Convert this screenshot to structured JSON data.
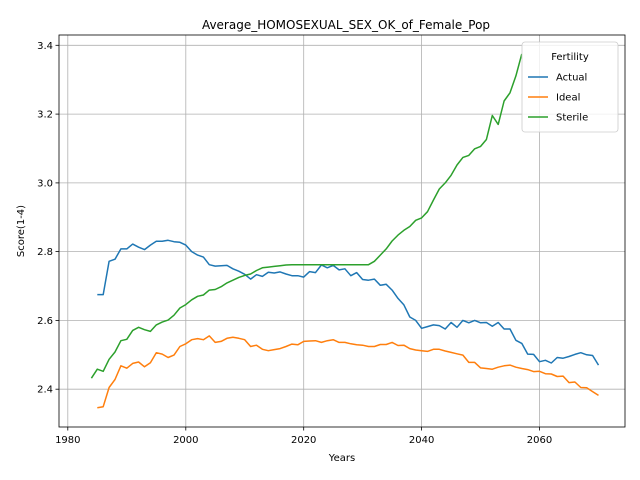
{
  "chart_data": {
    "type": "line",
    "title": "Average_HOMOSEXUAL_SEX_OK_of_Female_Pop",
    "xlabel": "Years",
    "ylabel": "Score(1-4)",
    "xlim": [
      1978.5,
      2074.5
    ],
    "ylim": [
      2.29,
      3.43
    ],
    "xticks": [
      1980,
      2000,
      2020,
      2040,
      2060
    ],
    "yticks": [
      2.4,
      2.6,
      2.8,
      3.0,
      3.2,
      3.4
    ],
    "xtick_labels": [
      "1980",
      "2000",
      "2020",
      "2040",
      "2060"
    ],
    "ytick_labels": [
      "2.4",
      "2.6",
      "2.8",
      "3.0",
      "3.2",
      "3.4"
    ],
    "grid": true,
    "legend": {
      "title": "Fertility",
      "position": "top-right"
    },
    "series": [
      {
        "name": "Actual",
        "color": "#1f77b4",
        "points": [
          [
            1985,
            2.675
          ],
          [
            1986,
            2.675
          ],
          [
            1987,
            2.772
          ],
          [
            1988,
            2.778
          ],
          [
            1989,
            2.808
          ],
          [
            1990,
            2.808
          ],
          [
            1991,
            2.822
          ],
          [
            1992,
            2.813
          ],
          [
            1993,
            2.806
          ],
          [
            1994,
            2.819
          ],
          [
            1995,
            2.83
          ],
          [
            1996,
            2.83
          ],
          [
            1997,
            2.833
          ],
          [
            1998,
            2.829
          ],
          [
            1999,
            2.827
          ],
          [
            2000,
            2.819
          ],
          [
            2001,
            2.8
          ],
          [
            2002,
            2.79
          ],
          [
            2003,
            2.784
          ],
          [
            2004,
            2.762
          ],
          [
            2005,
            2.758
          ],
          [
            2006,
            2.759
          ],
          [
            2007,
            2.76
          ],
          [
            2008,
            2.75
          ],
          [
            2009,
            2.743
          ],
          [
            2010,
            2.734
          ],
          [
            2011,
            2.72
          ],
          [
            2012,
            2.733
          ],
          [
            2013,
            2.728
          ],
          [
            2014,
            2.74
          ],
          [
            2015,
            2.738
          ],
          [
            2016,
            2.741
          ],
          [
            2017,
            2.735
          ],
          [
            2018,
            2.73
          ],
          [
            2019,
            2.73
          ],
          [
            2020,
            2.726
          ],
          [
            2021,
            2.742
          ],
          [
            2022,
            2.739
          ],
          [
            2023,
            2.761
          ],
          [
            2024,
            2.753
          ],
          [
            2025,
            2.76
          ],
          [
            2026,
            2.747
          ],
          [
            2027,
            2.75
          ],
          [
            2028,
            2.73
          ],
          [
            2029,
            2.739
          ],
          [
            2030,
            2.719
          ],
          [
            2031,
            2.717
          ],
          [
            2032,
            2.72
          ],
          [
            2033,
            2.702
          ],
          [
            2034,
            2.705
          ],
          [
            2035,
            2.688
          ],
          [
            2036,
            2.664
          ],
          [
            2037,
            2.645
          ],
          [
            2038,
            2.61
          ],
          [
            2039,
            2.6
          ],
          [
            2040,
            2.577
          ],
          [
            2041,
            2.582
          ],
          [
            2042,
            2.587
          ],
          [
            2043,
            2.585
          ],
          [
            2044,
            2.575
          ],
          [
            2045,
            2.594
          ],
          [
            2046,
            2.58
          ],
          [
            2047,
            2.6
          ],
          [
            2048,
            2.593
          ],
          [
            2049,
            2.6
          ],
          [
            2050,
            2.593
          ],
          [
            2051,
            2.594
          ],
          [
            2052,
            2.583
          ],
          [
            2053,
            2.594
          ],
          [
            2054,
            2.575
          ],
          [
            2055,
            2.575
          ],
          [
            2056,
            2.542
          ],
          [
            2057,
            2.533
          ],
          [
            2058,
            2.502
          ],
          [
            2059,
            2.501
          ],
          [
            2060,
            2.48
          ],
          [
            2061,
            2.484
          ],
          [
            2062,
            2.476
          ],
          [
            2063,
            2.492
          ],
          [
            2064,
            2.49
          ],
          [
            2065,
            2.495
          ],
          [
            2066,
            2.501
          ],
          [
            2067,
            2.506
          ],
          [
            2068,
            2.5
          ],
          [
            2069,
            2.498
          ],
          [
            2070,
            2.47
          ]
        ]
      },
      {
        "name": "Ideal",
        "color": "#ff7f0e",
        "points": [
          [
            1985,
            2.346
          ],
          [
            1986,
            2.349
          ],
          [
            1987,
            2.405
          ],
          [
            1988,
            2.428
          ],
          [
            1989,
            2.468
          ],
          [
            1990,
            2.461
          ],
          [
            1991,
            2.475
          ],
          [
            1992,
            2.479
          ],
          [
            1993,
            2.465
          ],
          [
            1994,
            2.477
          ],
          [
            1995,
            2.506
          ],
          [
            1996,
            2.502
          ],
          [
            1997,
            2.492
          ],
          [
            1998,
            2.499
          ],
          [
            1999,
            2.524
          ],
          [
            2000,
            2.532
          ],
          [
            2001,
            2.544
          ],
          [
            2002,
            2.547
          ],
          [
            2003,
            2.544
          ],
          [
            2004,
            2.555
          ],
          [
            2005,
            2.536
          ],
          [
            2006,
            2.539
          ],
          [
            2007,
            2.548
          ],
          [
            2008,
            2.551
          ],
          [
            2009,
            2.548
          ],
          [
            2010,
            2.544
          ],
          [
            2011,
            2.524
          ],
          [
            2012,
            2.528
          ],
          [
            2013,
            2.516
          ],
          [
            2014,
            2.512
          ],
          [
            2015,
            2.515
          ],
          [
            2016,
            2.518
          ],
          [
            2017,
            2.524
          ],
          [
            2018,
            2.531
          ],
          [
            2019,
            2.529
          ],
          [
            2020,
            2.539
          ],
          [
            2021,
            2.54
          ],
          [
            2022,
            2.541
          ],
          [
            2023,
            2.536
          ],
          [
            2024,
            2.541
          ],
          [
            2025,
            2.544
          ],
          [
            2026,
            2.536
          ],
          [
            2027,
            2.536
          ],
          [
            2028,
            2.532
          ],
          [
            2029,
            2.529
          ],
          [
            2030,
            2.528
          ],
          [
            2031,
            2.524
          ],
          [
            2032,
            2.524
          ],
          [
            2033,
            2.53
          ],
          [
            2034,
            2.53
          ],
          [
            2035,
            2.536
          ],
          [
            2036,
            2.527
          ],
          [
            2037,
            2.528
          ],
          [
            2038,
            2.518
          ],
          [
            2039,
            2.514
          ],
          [
            2040,
            2.512
          ],
          [
            2041,
            2.51
          ],
          [
            2042,
            2.516
          ],
          [
            2043,
            2.516
          ],
          [
            2044,
            2.511
          ],
          [
            2045,
            2.507
          ],
          [
            2046,
            2.503
          ],
          [
            2047,
            2.499
          ],
          [
            2048,
            2.478
          ],
          [
            2049,
            2.478
          ],
          [
            2050,
            2.462
          ],
          [
            2051,
            2.46
          ],
          [
            2052,
            2.458
          ],
          [
            2053,
            2.464
          ],
          [
            2054,
            2.468
          ],
          [
            2055,
            2.47
          ],
          [
            2056,
            2.464
          ],
          [
            2057,
            2.46
          ],
          [
            2058,
            2.457
          ],
          [
            2059,
            2.451
          ],
          [
            2060,
            2.452
          ],
          [
            2061,
            2.445
          ],
          [
            2062,
            2.444
          ],
          [
            2063,
            2.437
          ],
          [
            2064,
            2.438
          ],
          [
            2065,
            2.419
          ],
          [
            2066,
            2.421
          ],
          [
            2067,
            2.405
          ],
          [
            2068,
            2.404
          ],
          [
            2069,
            2.393
          ],
          [
            2070,
            2.382
          ]
        ]
      },
      {
        "name": "Sterile",
        "color": "#2ca02c",
        "points": [
          [
            1984,
            2.432
          ],
          [
            1985,
            2.458
          ],
          [
            1986,
            2.452
          ],
          [
            1987,
            2.487
          ],
          [
            1988,
            2.508
          ],
          [
            1989,
            2.541
          ],
          [
            1990,
            2.545
          ],
          [
            1991,
            2.571
          ],
          [
            1992,
            2.58
          ],
          [
            1993,
            2.573
          ],
          [
            1994,
            2.568
          ],
          [
            1995,
            2.587
          ],
          [
            1996,
            2.595
          ],
          [
            1997,
            2.601
          ],
          [
            1998,
            2.615
          ],
          [
            1999,
            2.636
          ],
          [
            2000,
            2.646
          ],
          [
            2001,
            2.66
          ],
          [
            2002,
            2.67
          ],
          [
            2003,
            2.674
          ],
          [
            2004,
            2.688
          ],
          [
            2005,
            2.69
          ],
          [
            2006,
            2.698
          ],
          [
            2007,
            2.709
          ],
          [
            2008,
            2.717
          ],
          [
            2009,
            2.725
          ],
          [
            2010,
            2.731
          ],
          [
            2011,
            2.735
          ],
          [
            2012,
            2.745
          ],
          [
            2013,
            2.753
          ],
          [
            2014,
            2.755
          ],
          [
            2015,
            2.757
          ],
          [
            2016,
            2.759
          ],
          [
            2017,
            2.761
          ],
          [
            2018,
            2.762
          ],
          [
            2019,
            2.762
          ],
          [
            2020,
            2.762
          ],
          [
            2021,
            2.762
          ],
          [
            2022,
            2.762
          ],
          [
            2023,
            2.762
          ],
          [
            2024,
            2.762
          ],
          [
            2025,
            2.762
          ],
          [
            2026,
            2.762
          ],
          [
            2027,
            2.762
          ],
          [
            2028,
            2.762
          ],
          [
            2029,
            2.762
          ],
          [
            2030,
            2.762
          ],
          [
            2031,
            2.762
          ],
          [
            2032,
            2.772
          ],
          [
            2033,
            2.79
          ],
          [
            2034,
            2.808
          ],
          [
            2035,
            2.831
          ],
          [
            2036,
            2.848
          ],
          [
            2037,
            2.862
          ],
          [
            2038,
            2.873
          ],
          [
            2039,
            2.891
          ],
          [
            2040,
            2.898
          ],
          [
            2041,
            2.916
          ],
          [
            2042,
            2.95
          ],
          [
            2043,
            2.982
          ],
          [
            2044,
            3.0
          ],
          [
            2045,
            3.022
          ],
          [
            2046,
            3.052
          ],
          [
            2047,
            3.074
          ],
          [
            2048,
            3.08
          ],
          [
            2049,
            3.099
          ],
          [
            2050,
            3.106
          ],
          [
            2051,
            3.126
          ],
          [
            2052,
            3.196
          ],
          [
            2053,
            3.17
          ],
          [
            2054,
            3.238
          ],
          [
            2055,
            3.262
          ],
          [
            2056,
            3.311
          ],
          [
            2057,
            3.375
          ]
        ]
      }
    ]
  }
}
